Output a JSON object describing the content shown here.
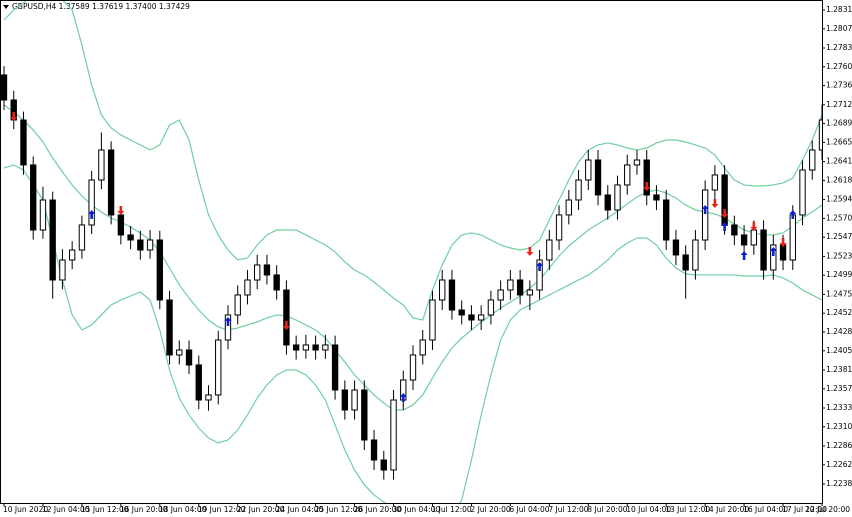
{
  "chart_data": {
    "type": "candlestick",
    "title": "GBPUSD,H4  1.37589 1.37619 1.37400 1.37429",
    "categories": [
      "10 Jun 2020",
      null,
      null,
      null,
      "12 Jun 04:00",
      null,
      null,
      null,
      "15 Jun 12:00",
      null,
      null,
      null,
      "16 Jun 20:00",
      null,
      null,
      null,
      "18 Jun 04:00",
      null,
      null,
      null,
      "19 Jun 12:00",
      null,
      null,
      null,
      "22 Jun 20:00",
      null,
      null,
      null,
      "24 Jun 04:00",
      null,
      null,
      null,
      "25 Jun 12:00",
      null,
      null,
      null,
      "26 Jun 20:00",
      null,
      null,
      null,
      "30 Jun 04:00",
      null,
      null,
      null,
      "1 Jul 12:00",
      null,
      null,
      null,
      "2 Jul 20:00",
      null,
      null,
      null,
      "6 Jul 04:00",
      null,
      null,
      null,
      "7 Jul 12:00",
      null,
      null,
      null,
      "8 Jul 20:00",
      null,
      null,
      null,
      "10 Jul 04:00",
      null,
      null,
      null,
      "13 Jul 12:00",
      null,
      null,
      null,
      "14 Jul 20:00",
      null,
      null,
      null,
      "16 Jul 04:00",
      null,
      null,
      null,
      "17 Jul 12:00",
      null,
      null,
      null,
      "20 Jul 20:00"
    ],
    "open": [
      1.27498,
      1.27185,
      1.26935,
      1.26373,
      1.2556,
      1.25935,
      1.24935,
      1.25185,
      1.2531,
      1.25623,
      1.26185,
      1.2656,
      1.25748,
      1.25498,
      1.25435,
      1.2531,
      1.25435,
      1.24685,
      1.23998,
      1.2406,
      1.23873,
      1.23435,
      1.23498,
      1.24185,
      1.24498,
      1.24748,
      1.24935,
      1.25123,
      1.24998,
      1.2481,
      1.24123,
      1.2406,
      1.24123,
      1.2406,
      1.24123,
      1.2356,
      1.2331,
      1.2356,
      1.22935,
      1.22685,
      1.2256,
      1.23435,
      1.23685,
      1.23998,
      1.24185,
      1.24685,
      1.24935,
      1.2456,
      1.24498,
      1.24435,
      1.24498,
      1.24685,
      1.2481,
      1.24935,
      1.24748,
      1.2481,
      1.25185,
      1.25435,
      1.25748,
      1.25935,
      1.26185,
      1.26435,
      1.25998,
      1.2581,
      1.26123,
      1.26373,
      1.26435,
      1.25998,
      1.25935,
      1.25435,
      1.25248,
      1.2506,
      1.25435,
      1.2606,
      1.26248,
      1.25623,
      1.25498,
      1.25373,
      1.2556,
      1.2506,
      1.25373,
      1.25185,
      1.25748,
      1.2631,
      1.2656
    ],
    "high": [
      1.2761,
      1.273,
      1.2704,
      1.2648,
      1.261,
      1.2604,
      1.2532,
      1.2542,
      1.2574,
      1.263,
      1.2678,
      1.2667,
      1.2586,
      1.2561,
      1.2555,
      1.2556,
      1.2555,
      1.248,
      1.2418,
      1.2418,
      1.2399,
      1.2362,
      1.243,
      1.2462,
      1.2487,
      1.2506,
      1.2525,
      1.2525,
      1.2512,
      1.2493,
      1.2424,
      1.2425,
      1.2424,
      1.2425,
      1.2424,
      1.2368,
      1.2368,
      1.2368,
      1.2306,
      1.228,
      1.2356,
      1.238,
      1.2412,
      1.2431,
      1.248,
      1.2506,
      1.2506,
      1.2468,
      1.2462,
      1.2462,
      1.248,
      1.2493,
      1.2506,
      1.2506,
      1.2493,
      1.2531,
      1.2556,
      1.2587,
      1.2606,
      1.2631,
      1.2656,
      1.2656,
      1.2612,
      1.2624,
      1.265,
      1.2656,
      1.2656,
      1.2612,
      1.2606,
      1.2556,
      1.2537,
      1.2556,
      1.2618,
      1.2637,
      1.2637,
      1.2574,
      1.2562,
      1.2568,
      1.2568,
      1.255,
      1.255,
      1.2587,
      1.2643,
      1.2668,
      1.2713
    ],
    "low": [
      1.2706,
      1.2682,
      1.2625,
      1.2544,
      1.2545,
      1.247,
      1.2482,
      1.2507,
      1.252,
      1.2551,
      1.2607,
      1.2563,
      1.2538,
      1.2532,
      1.2519,
      1.252,
      1.2457,
      1.2388,
      1.2388,
      1.2376,
      1.2332,
      1.233,
      1.2338,
      1.2407,
      1.2438,
      1.2463,
      1.2482,
      1.2488,
      1.2469,
      1.24,
      1.2394,
      1.2395,
      1.2394,
      1.2395,
      1.2344,
      1.2319,
      1.2319,
      1.2281,
      1.2256,
      1.2244,
      1.2244,
      1.2331,
      1.2356,
      1.2388,
      1.2406,
      1.2456,
      1.2444,
      1.2438,
      1.2431,
      1.2431,
      1.2438,
      1.2456,
      1.2469,
      1.2463,
      1.2456,
      1.2469,
      1.2506,
      1.2531,
      1.2563,
      1.2581,
      1.2606,
      1.2587,
      1.2569,
      1.2569,
      1.26,
      1.2625,
      1.2587,
      1.2581,
      1.2531,
      1.2512,
      1.247,
      1.2494,
      1.2531,
      1.2594,
      1.255,
      1.2537,
      1.2525,
      1.2525,
      1.2494,
      1.2494,
      1.2506,
      1.2506,
      1.2562,
      1.2619,
      1.2644
    ],
    "close": [
      1.27185,
      1.26935,
      1.26373,
      1.2556,
      1.25935,
      1.24935,
      1.25185,
      1.2531,
      1.25623,
      1.26185,
      1.2656,
      1.25748,
      1.25498,
      1.25435,
      1.2531,
      1.25435,
      1.24685,
      1.23998,
      1.2406,
      1.23873,
      1.23435,
      1.23498,
      1.24185,
      1.24498,
      1.24748,
      1.24935,
      1.25123,
      1.24998,
      1.2481,
      1.24123,
      1.2406,
      1.24123,
      1.2406,
      1.24123,
      1.2356,
      1.2331,
      1.2356,
      1.22935,
      1.22685,
      1.2256,
      1.23435,
      1.23685,
      1.23998,
      1.24185,
      1.24685,
      1.24935,
      1.2456,
      1.24498,
      1.24435,
      1.24498,
      1.24685,
      1.2481,
      1.24935,
      1.24748,
      1.2481,
      1.25185,
      1.25435,
      1.25748,
      1.25935,
      1.26185,
      1.26435,
      1.25998,
      1.2581,
      1.26123,
      1.26373,
      1.26435,
      1.25998,
      1.25935,
      1.25435,
      1.25248,
      1.2506,
      1.25435,
      1.2606,
      1.26248,
      1.25623,
      1.25498,
      1.25373,
      1.2556,
      1.2506,
      1.25373,
      1.25185,
      1.25748,
      1.2631,
      1.2656,
      1.26935
    ],
    "up_color": "#ffffff",
    "down_color": "#000000",
    "bands": [
      {
        "color": "#6fcf9f",
        "values": [
          1.28185,
          1.2831,
          1.28398,
          1.28498,
          1.28535,
          1.28498,
          1.28435,
          1.2831,
          1.27873,
          1.27373,
          1.26998,
          1.26835,
          1.26748,
          1.26685,
          1.26623,
          1.2656,
          1.26623,
          1.26873,
          1.26935,
          1.26685,
          1.26185,
          1.25748,
          1.25498,
          1.2531,
          1.25185,
          1.2521,
          1.25373,
          1.25498,
          1.2556,
          1.2556,
          1.2556,
          1.25498,
          1.25435,
          1.25373,
          1.25285,
          1.2516,
          1.2506,
          1.24998,
          1.2491,
          1.2481,
          1.2471,
          1.24623,
          1.2446,
          1.24435,
          1.2481,
          1.25123,
          1.25373,
          1.25498,
          1.25523,
          1.25498,
          1.25435,
          1.25373,
          1.25335,
          1.2531,
          1.25335,
          1.25435,
          1.25685,
          1.25935,
          1.26185,
          1.2641,
          1.2656,
          1.26623,
          1.26648,
          1.26623,
          1.26585,
          1.2656,
          1.26585,
          1.26648,
          1.26685,
          1.26685,
          1.2666,
          1.26623,
          1.26585,
          1.26498,
          1.26335,
          1.26185,
          1.26123,
          1.2611,
          1.2611,
          1.26123,
          1.26148,
          1.2621,
          1.26435,
          1.26685,
          1.26998
        ]
      },
      {
        "color": "#6fcf9f",
        "values": [
          1.27123,
          1.27035,
          1.26935,
          1.2681,
          1.2666,
          1.2646,
          1.26285,
          1.26123,
          1.25985,
          1.25873,
          1.25785,
          1.2571,
          1.2566,
          1.25598,
          1.25523,
          1.25435,
          1.25285,
          1.25085,
          1.24873,
          1.2471,
          1.2456,
          1.24435,
          1.24348,
          1.2431,
          1.24335,
          1.24373,
          1.2441,
          1.2446,
          1.24498,
          1.24485,
          1.24435,
          1.24373,
          1.2431,
          1.2421,
          1.2406,
          1.2391,
          1.23748,
          1.23623,
          1.23498,
          1.23398,
          1.2331,
          1.2331,
          1.23373,
          1.23498,
          1.2371,
          1.2391,
          1.24085,
          1.2421,
          1.2431,
          1.2441,
          1.24498,
          1.24585,
          1.2466,
          1.24735,
          1.24835,
          1.24935,
          1.25085,
          1.25235,
          1.2536,
          1.2546,
          1.2556,
          1.25635,
          1.2571,
          1.25798,
          1.25885,
          1.25973,
          1.26035,
          1.2606,
          1.26023,
          1.2596,
          1.25873,
          1.2581,
          1.25785,
          1.2576,
          1.2571,
          1.25635,
          1.2556,
          1.25523,
          1.25498,
          1.25498,
          1.25523,
          1.2561,
          1.2571,
          1.25785,
          1.25873
        ]
      },
      {
        "color": "#6fcf9f",
        "values": [
          1.26335,
          1.26373,
          1.2631,
          1.26123,
          1.25935,
          1.25435,
          1.24935,
          1.24498,
          1.2431,
          1.24373,
          1.24498,
          1.24623,
          1.24685,
          1.24735,
          1.24785,
          1.24685,
          1.2431,
          1.2381,
          1.2346,
          1.23248,
          1.23085,
          1.2296,
          1.22898,
          1.22935,
          1.2306,
          1.23248,
          1.2346,
          1.23623,
          1.23748,
          1.2381,
          1.2381,
          1.23748,
          1.23623,
          1.23435,
          1.23123,
          1.2281,
          1.2256,
          1.22373,
          1.22248,
          1.2216,
          1.22085,
          1.22035,
          1.21935,
          1.21835,
          1.2181,
          1.21873,
          1.21998,
          1.22185,
          1.22685,
          1.23248,
          1.23748,
          1.24185,
          1.24435,
          1.2456,
          1.24623,
          1.24685,
          1.24748,
          1.2481,
          1.24873,
          1.24935,
          1.24998,
          1.25085,
          1.25185,
          1.2531,
          1.25398,
          1.2546,
          1.2546,
          1.25373,
          1.2521,
          1.25085,
          1.2501,
          1.24998,
          1.24998,
          1.24998,
          1.24998,
          1.24998,
          1.24985,
          1.24985,
          1.24985,
          1.24998,
          1.2496,
          1.24898,
          1.2481,
          1.24748,
          1.24685
        ]
      }
    ],
    "sell_arrows": {
      "color": "#e8231c",
      "values": [
        null,
        1.2696,
        null,
        null,
        null,
        null,
        null,
        null,
        null,
        null,
        null,
        null,
        1.25785,
        null,
        null,
        null,
        null,
        null,
        null,
        null,
        null,
        null,
        null,
        null,
        null,
        null,
        null,
        null,
        null,
        1.24348,
        null,
        null,
        null,
        null,
        null,
        null,
        null,
        null,
        null,
        null,
        null,
        null,
        null,
        null,
        null,
        null,
        null,
        null,
        null,
        null,
        null,
        null,
        null,
        null,
        1.25273,
        null,
        null,
        null,
        null,
        null,
        null,
        null,
        null,
        null,
        null,
        null,
        1.26085,
        null,
        null,
        null,
        null,
        null,
        null,
        1.25873,
        1.25748,
        null,
        null,
        1.25585,
        null,
        null,
        1.25385,
        null,
        null,
        null,
        null
      ]
    },
    "buy_arrows": {
      "color": "#0b1fd6",
      "values": [
        null,
        null,
        null,
        null,
        null,
        null,
        null,
        null,
        null,
        1.25773,
        null,
        null,
        null,
        null,
        null,
        null,
        null,
        null,
        null,
        null,
        null,
        null,
        null,
        1.24435,
        null,
        null,
        null,
        null,
        null,
        null,
        null,
        null,
        null,
        null,
        null,
        null,
        null,
        null,
        null,
        null,
        null,
        1.23485,
        null,
        null,
        null,
        null,
        null,
        null,
        null,
        null,
        null,
        null,
        null,
        null,
        null,
        1.25123,
        null,
        null,
        null,
        null,
        null,
        null,
        null,
        null,
        null,
        null,
        null,
        null,
        null,
        null,
        null,
        null,
        1.25835,
        null,
        1.25623,
        null,
        1.2526,
        null,
        null,
        1.2531,
        null,
        1.25773,
        null,
        null,
        null
      ]
    },
    "ylim": [
      1.2216,
      1.28385
    ],
    "yticks": [
      {
        "value": 1.2831,
        "label": "1.28310"
      },
      1.28075,
      1.27835,
      {
        "value": 1.276,
        "label": "1.27600"
      },
      1.27365,
      1.27125,
      1.2689,
      1.26655,
      1.26415,
      {
        "value": 1.2618,
        "label": "1.26180"
      },
      {
        "value": 1.2594,
        "label": "1.25940"
      },
      1.25705,
      {
        "value": 1.2547,
        "label": "1.25470"
      },
      {
        "value": 1.2523,
        "label": "1.25230"
      },
      1.24995,
      1.24755,
      {
        "value": 1.2452,
        "label": "1.24520"
      },
      1.24285,
      {
        "value": 1.2405,
        "label": "1.24050"
      },
      {
        "value": 1.2381,
        "label": "1.23810"
      },
      1.23575,
      1.23335,
      {
        "value": 1.231,
        "label": "1.23100"
      },
      {
        "value": 1.2286,
        "label": "1.22860"
      },
      1.22625,
      1.22385
    ],
    "grid": false
  }
}
